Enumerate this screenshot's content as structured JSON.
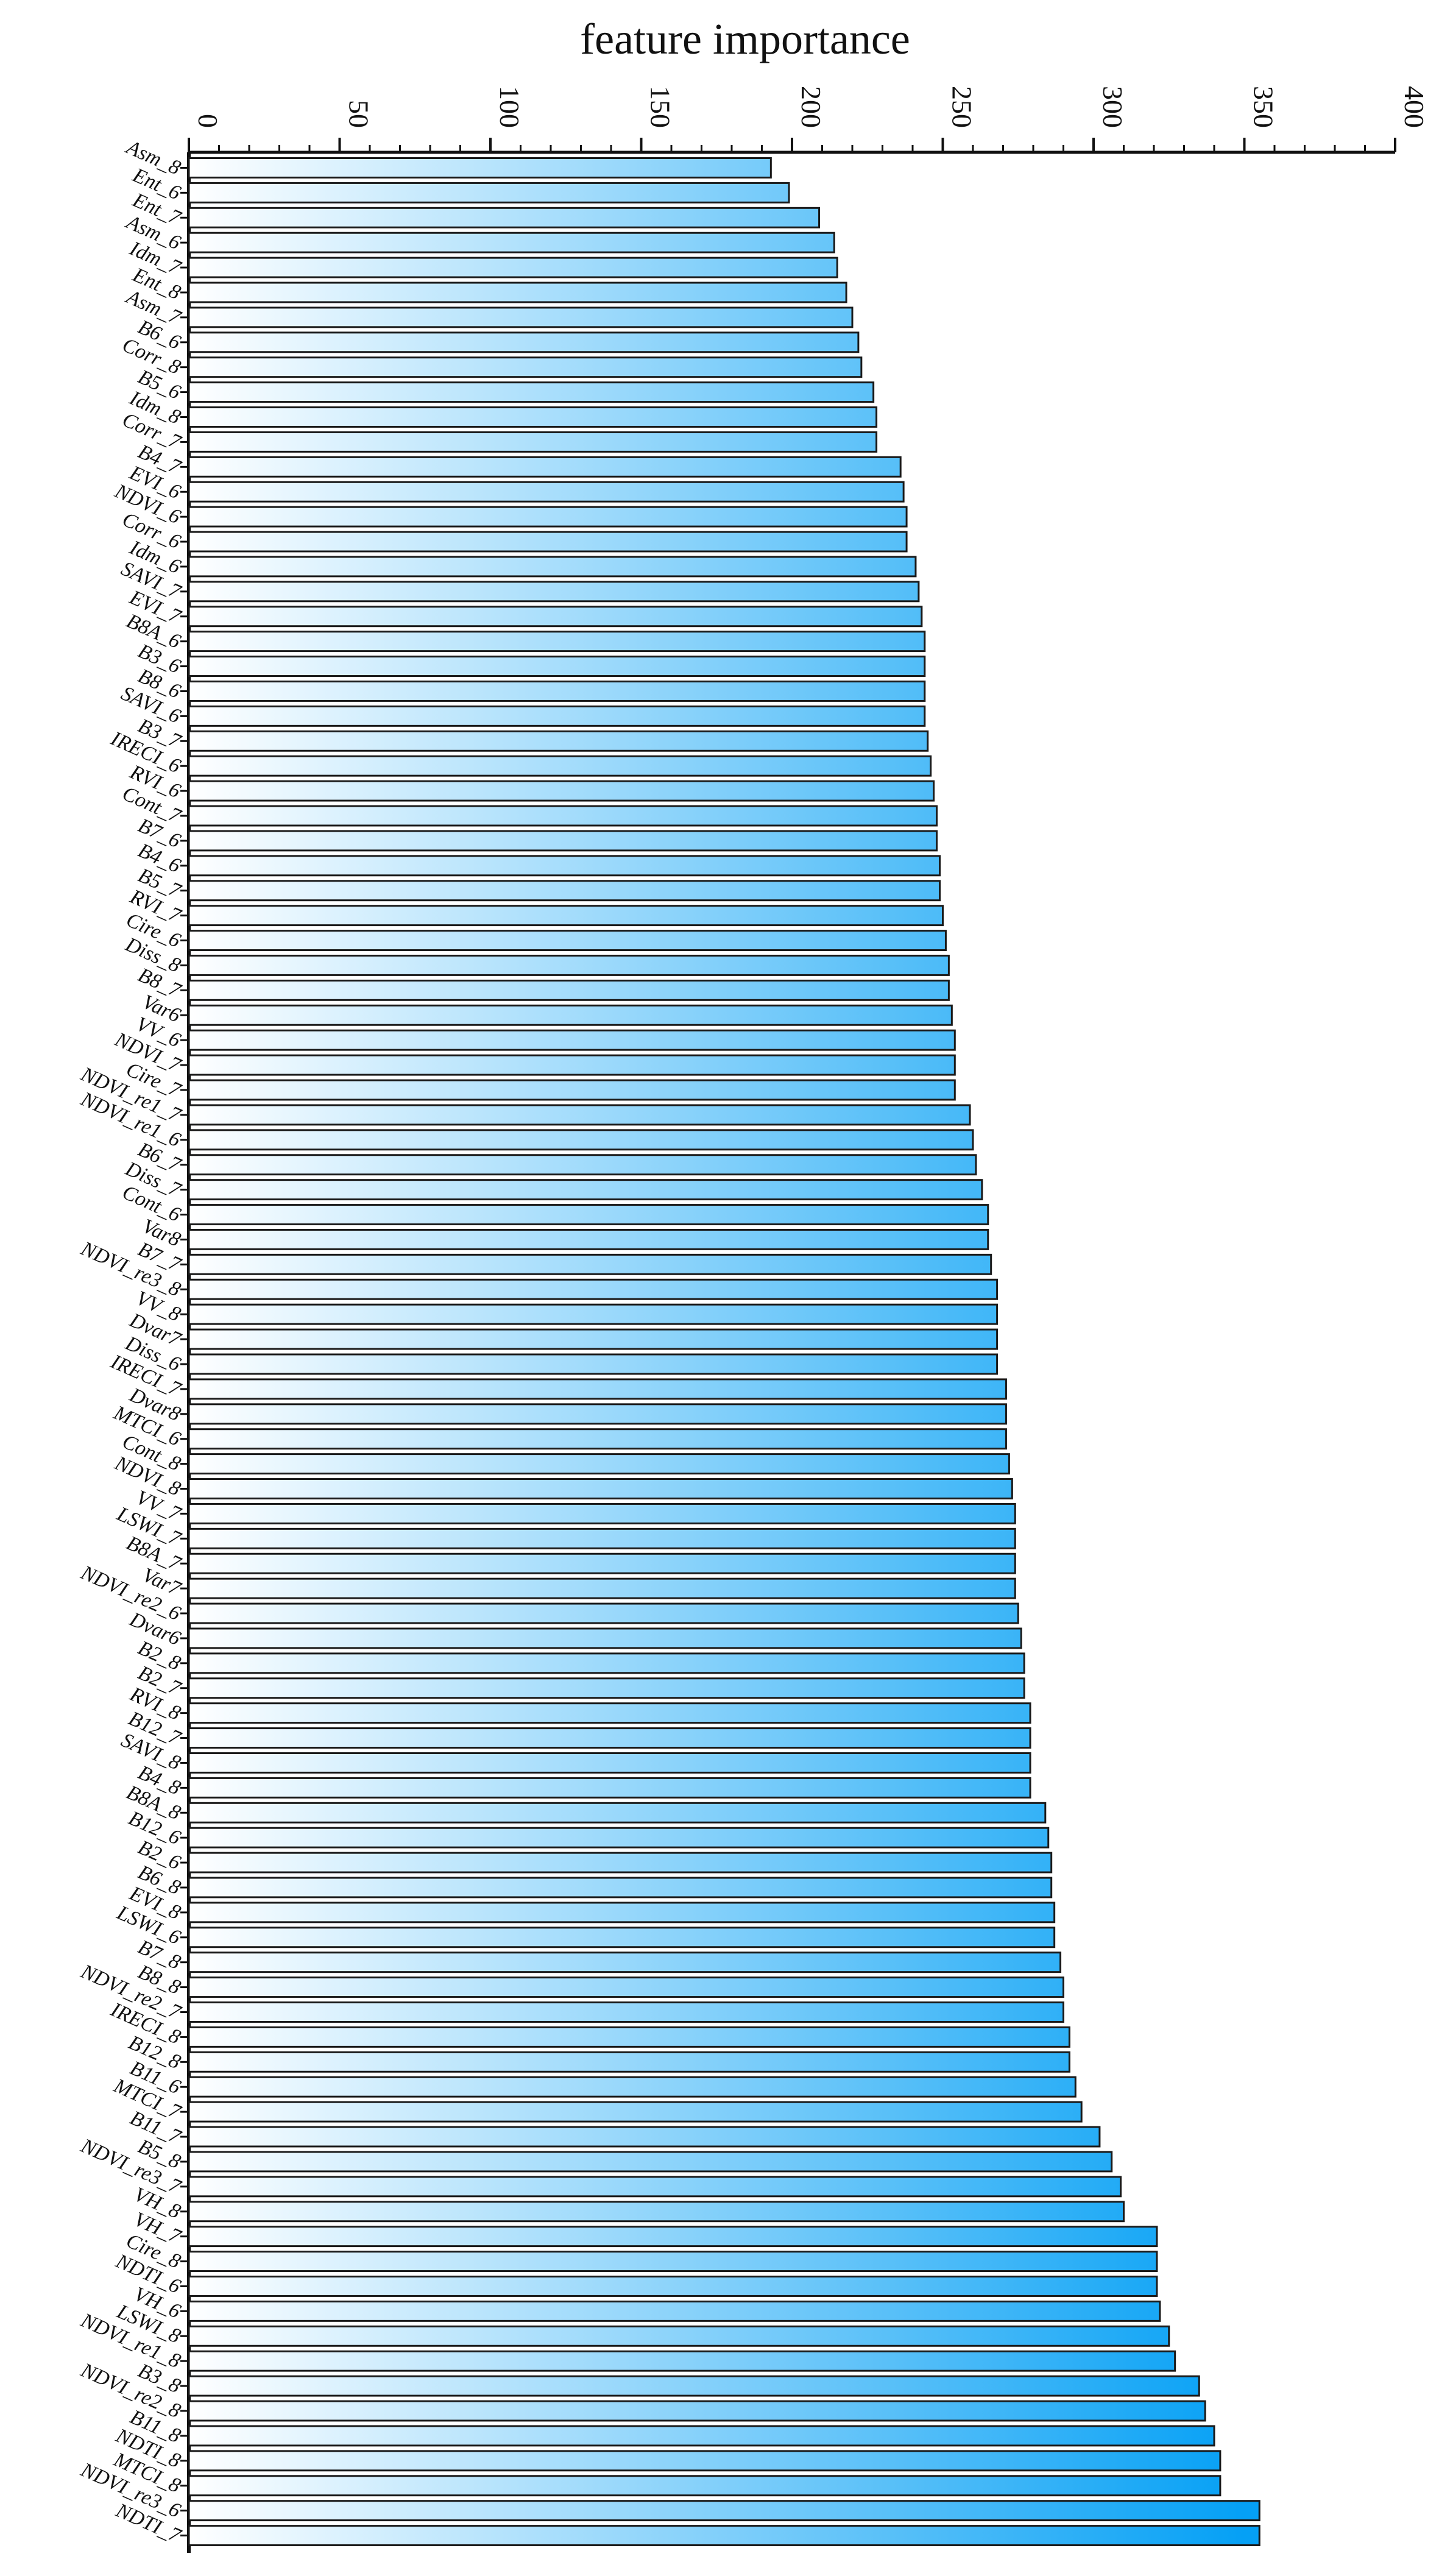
{
  "chart_data": {
    "type": "bar",
    "orientation": "horizontal",
    "title": "feature importance",
    "xlabel": "",
    "ylabel": "",
    "xlim": [
      0,
      400
    ],
    "xticks": [
      0,
      50,
      100,
      150,
      200,
      250,
      300,
      350,
      400
    ],
    "axis_position": "top",
    "grid": false,
    "legend": "none",
    "colors": {
      "bar_start": "#ffffff",
      "bar_end": "#05a0f5",
      "bar_stroke": "#1a1a1a",
      "axis": "#111111"
    },
    "categories": [
      "Asm_8",
      "Ent_6",
      "Ent_7",
      "Asm_6",
      "Idm_7",
      "Ent_8",
      "Asm_7",
      "B6_6",
      "Corr_8",
      "B5_6",
      "Idm_8",
      "Corr_7",
      "B4_7",
      "EVI_6",
      "NDVI_6",
      "Corr_6",
      "Idm_6",
      "SAVI_7",
      "EVI_7",
      "B8A_6",
      "B3_6",
      "B8_6",
      "SAVI_6",
      "B3_7",
      "IRECI_6",
      "RVI_6",
      "Cont_7",
      "B7_6",
      "B4_6",
      "B5_7",
      "RVI_7",
      "Cire_6",
      "Diss_8",
      "B8_7",
      "Var6",
      "VV_6",
      "NDVI_7",
      "Cire_7",
      "NDVI_re1_7",
      "NDVI_re1_6",
      "B6_7",
      "Diss_7",
      "Cont_6",
      "Var8",
      "B7_7",
      "NDVI_re3_8",
      "VV_8",
      "Dvar7",
      "Diss_6",
      "IRECI_7",
      "Dvar8",
      "MTCI_6",
      "Cont_8",
      "NDVI_8",
      "VV_7",
      "LSWI_7",
      "B8A_7",
      "Var7",
      "NDVI_re2_6",
      "Dvar6",
      "B2_8",
      "B2_7",
      "RVI_8",
      "B12_7",
      "SAVI_8",
      "B4_8",
      "B8A_8",
      "B12_6",
      "B2_6",
      "B6_8",
      "EVI_8",
      "LSWI_6",
      "B7_8",
      "B8_8",
      "NDVI_re2_7",
      "IRECI_8",
      "B12_8",
      "B11_6",
      "MTCI_7",
      "B11_7",
      "B5_8",
      "NDVI_re3_7",
      "VH_8",
      "VH_7",
      "Cire_8",
      "NDTI_6",
      "VH_6",
      "LSWI_8",
      "NDVI_re1_8",
      "B3_8",
      "NDVI_re2_8",
      "B11_8",
      "NDTI_8",
      "MTCI_8",
      "NDVI_re3_6",
      "NDTI_7"
    ],
    "values": [
      193,
      199,
      209,
      214,
      215,
      218,
      220,
      222,
      223,
      227,
      228,
      228,
      236,
      237,
      238,
      238,
      241,
      242,
      243,
      244,
      244,
      244,
      244,
      245,
      246,
      247,
      248,
      248,
      249,
      249,
      250,
      251,
      252,
      252,
      253,
      254,
      254,
      254,
      259,
      260,
      261,
      263,
      265,
      265,
      266,
      268,
      268,
      268,
      268,
      271,
      271,
      271,
      272,
      273,
      274,
      274,
      274,
      274,
      275,
      276,
      277,
      277,
      279,
      279,
      279,
      279,
      284,
      285,
      286,
      286,
      287,
      287,
      289,
      290,
      290,
      292,
      292,
      294,
      296,
      302,
      306,
      309,
      310,
      321,
      321,
      321,
      322,
      325,
      327,
      335,
      337,
      340,
      342,
      342,
      355,
      355
    ]
  }
}
